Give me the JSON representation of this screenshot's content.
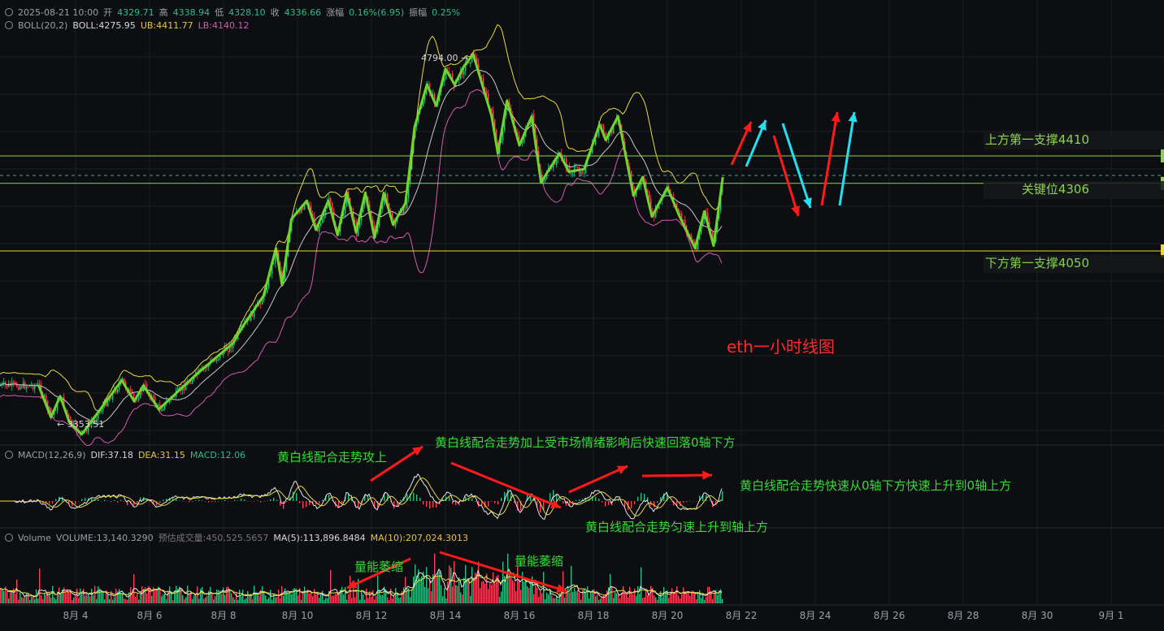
{
  "header": {
    "datetime": "2025-08-21 10:00",
    "open_label": "开",
    "open": "4329.71",
    "high_label": "高",
    "high": "4338.94",
    "low_label": "低",
    "low": "4328.10",
    "close_label": "收",
    "close": "4336.66",
    "change_label": "涨幅",
    "change": "0.16%(6.95)",
    "amp_label": "振幅",
    "amp": "0.25%"
  },
  "boll": {
    "name": "BOLL(20,2)",
    "mid": "BOLL:4275.95",
    "ub": "UB:4411.77",
    "lb": "LB:4140.12"
  },
  "macd": {
    "name": "MACD(12,26,9)",
    "dif": "DIF:37.18",
    "dea": "DEA:31.15",
    "macd": "MACD:12.06"
  },
  "volume": {
    "name": "Volume",
    "vol": "VOLUME:13,140.3290",
    "est": "预估成交量:450,525.5657",
    "ma5": "MA(5):113,896.8484",
    "ma10": "MA(10):207,024.3013"
  },
  "colors": {
    "up": "#2ebd85",
    "down": "#f6465d",
    "wave": "#6fd42c",
    "ub": "#e8dc3f",
    "mid": "#c8c8c8",
    "lb": "#d45bb0",
    "level": "#8fd14f",
    "support": "#f0d43a",
    "annot": "#33dd33",
    "title": "#ff2a2a"
  },
  "chart_data": {
    "type": "candlestick",
    "title": "eth一小时线图",
    "x_ticks": [
      "8月 4",
      "8月 6",
      "8月 8",
      "8月 10",
      "8月 12",
      "8月 14",
      "8月 16",
      "8月 18",
      "8月 20",
      "8月 22",
      "8月 24",
      "8月 26",
      "8月 28",
      "8月 30",
      "9月 1"
    ],
    "price_range": [
      3250,
      4850
    ],
    "marked": {
      "high": "4794.00",
      "low": "3353.51"
    },
    "wave_path": [
      [
        "8月 3 00:00",
        3540
      ],
      [
        "8月 3 08:00",
        3420
      ],
      [
        "8月 3 14:00",
        3500
      ],
      [
        "8月 3 20:00",
        3400
      ],
      [
        "8月 4 04:00",
        3355
      ],
      [
        "8月 5 06:00",
        3560
      ],
      [
        "8月 5 14:00",
        3480
      ],
      [
        "8月 5 20:00",
        3540
      ],
      [
        "8月 6 06:00",
        3450
      ],
      [
        "8月 7 06:00",
        3580
      ],
      [
        "8月 8 06:00",
        3700
      ],
      [
        "8month 8 12:00",
        3760
      ],
      [
        "8月 9 02:00",
        3880
      ],
      [
        "8月 9 10:00",
        4060
      ],
      [
        "8月 9 14:00",
        3920
      ],
      [
        "8月 9 20:00",
        4170
      ],
      [
        "8月 10 06:00",
        4240
      ],
      [
        "8月 10 12:00",
        4130
      ],
      [
        "8月 10 20:00",
        4240
      ],
      [
        "8月 11 02:00",
        4110
      ],
      [
        "8月 11 08:00",
        4270
      ],
      [
        "8月 11 14:00",
        4120
      ],
      [
        "8月 11 20:00",
        4270
      ],
      [
        "8月 12 02:00",
        4100
      ],
      [
        "8月 12 08:00",
        4270
      ],
      [
        "8月 12 14:00",
        4150
      ],
      [
        "8月 12 22:00",
        4230
      ],
      [
        "8月 13 04:00",
        4520
      ],
      [
        "8月 13 12:00",
        4680
      ],
      [
        "8月 13 18:00",
        4600
      ],
      [
        "8月 14 00:00",
        4740
      ],
      [
        "8月 14 06:00",
        4680
      ],
      [
        "8月 14 12:00",
        4750
      ],
      [
        "8月 14 18:00",
        4795
      ],
      [
        "8月 15 06:00",
        4560
      ],
      [
        "8月 15 10:00",
        4420
      ],
      [
        "8月 15 16:00",
        4620
      ],
      [
        "8月 16 00:00",
        4450
      ],
      [
        "8月 16 08:00",
        4560
      ],
      [
        "8月 16 14:00",
        4310
      ],
      [
        "8月 17 02:00",
        4420
      ],
      [
        "8月 17 08:00",
        4350
      ],
      [
        "8月 17 18:00",
        4360
      ],
      [
        "8月 18 04:00",
        4530
      ],
      [
        "8月 18 08:00",
        4470
      ],
      [
        "8月 18 16:00",
        4560
      ],
      [
        "8月 19 02:00",
        4260
      ],
      [
        "8月 19 08:00",
        4330
      ],
      [
        "8月 19 14:00",
        4180
      ],
      [
        "8月 20 00:00",
        4290
      ],
      [
        "8月 20 08:00",
        4180
      ],
      [
        "8月 20 18:00",
        4060
      ],
      [
        "8月 21 00:00",
        4200
      ],
      [
        "8月 21 06:00",
        4070
      ],
      [
        "8月 21 12:00",
        4330
      ]
    ],
    "levels": [
      {
        "label": "上方第一支撑4410",
        "value": 4410
      },
      {
        "label": "关键位4306",
        "value": 4306
      },
      {
        "label": "下方第一支撑4050",
        "value": 4050
      }
    ],
    "annotations": [
      "黄白线配合走势攻上",
      "黄白线配合走势加上受市场情绪影响后快速回落0轴下方",
      "黄白线配合走势快速从0轴下方快速上升到0轴上方",
      "黄白线配合走势匀速上升到轴上方",
      "量能萎缩",
      "量能萎缩"
    ]
  }
}
